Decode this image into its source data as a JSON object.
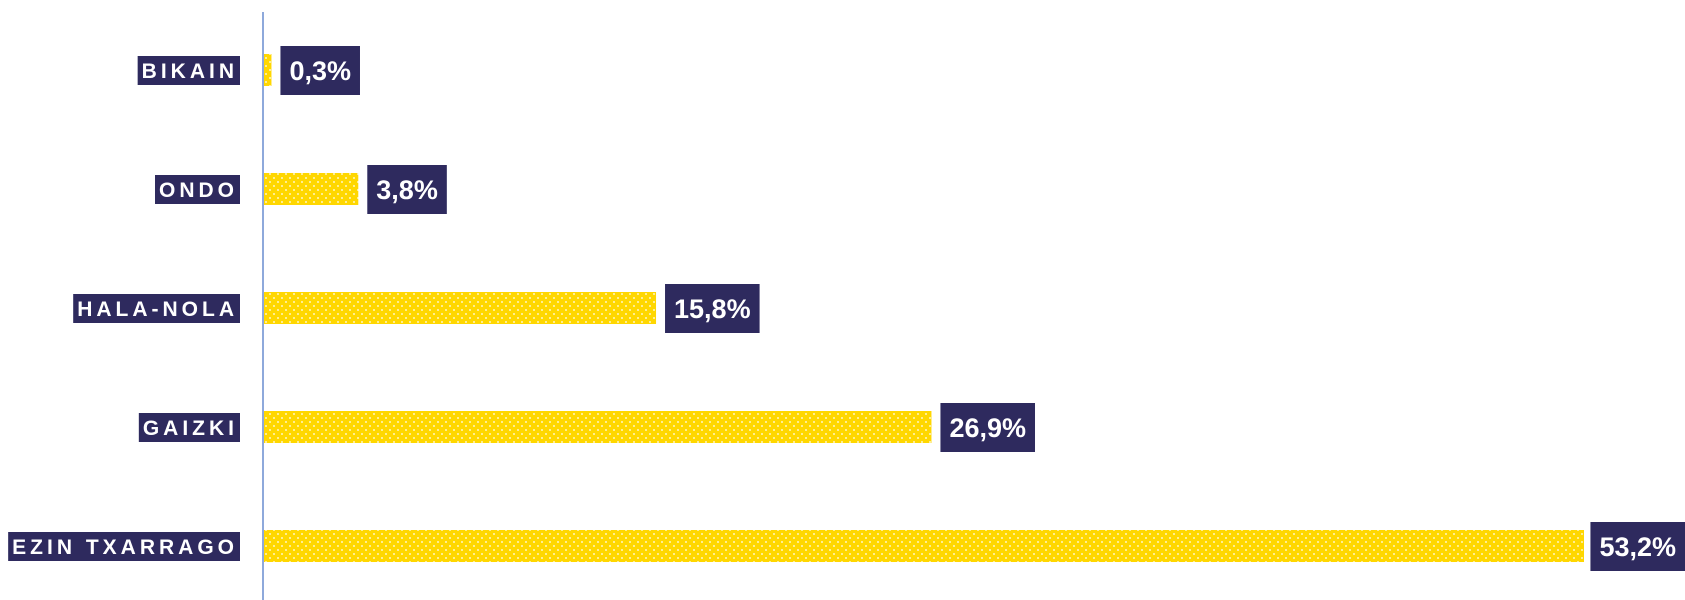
{
  "chart_data": {
    "type": "bar",
    "orientation": "horizontal",
    "categories": [
      "BIKAIN",
      "ONDO",
      "HALA-NOLA",
      "GAIZKI",
      "EZIN TXARRAGO"
    ],
    "values": [
      0.3,
      3.8,
      15.8,
      26.9,
      53.2
    ],
    "value_labels": [
      "0,3%",
      "3,8%",
      "15,8%",
      "26,9%",
      "53,2%"
    ],
    "unit": "%",
    "title": "",
    "xlabel": "",
    "ylabel": "",
    "xlim": [
      0,
      53.2
    ],
    "grid": false,
    "legend": "none",
    "bar_pattern": "dotted",
    "colors": {
      "bar": "#FFD700",
      "label_bg": "#2E2A5E",
      "label_text": "#FFFFFF",
      "axis": "#8EA9DB"
    }
  }
}
